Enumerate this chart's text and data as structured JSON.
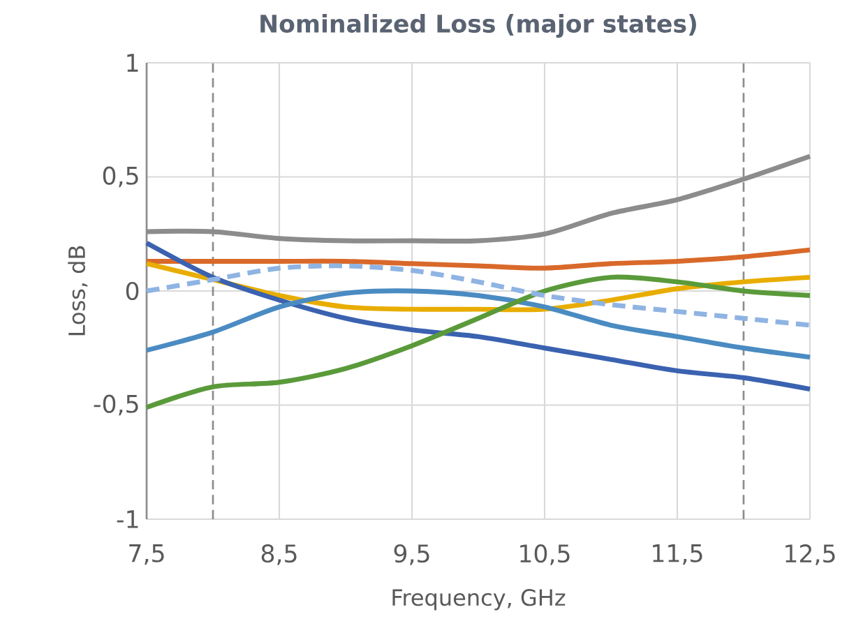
{
  "chart_data": {
    "type": "line",
    "title": "Nominalized Loss (major states)",
    "xlabel": "Frequency, GHz",
    "ylabel": "Loss, dB",
    "x": [
      7.5,
      8,
      8.5,
      9,
      9.5,
      10,
      10.5,
      11,
      11.5,
      12,
      12.5
    ],
    "series": [
      {
        "color": "#8c8c8c",
        "values": [
          0.26,
          0.26,
          0.23,
          0.22,
          0.22,
          0.22,
          0.25,
          0.34,
          0.4,
          0.49,
          0.59
        ]
      },
      {
        "color": "#d9692a",
        "values": [
          0.13,
          0.13,
          0.13,
          0.13,
          0.12,
          0.11,
          0.1,
          0.12,
          0.13,
          0.15,
          0.18
        ]
      },
      {
        "color": "#e8ad00",
        "values": [
          0.12,
          0.05,
          -0.02,
          -0.07,
          -0.08,
          -0.08,
          -0.08,
          -0.04,
          0.01,
          0.04,
          0.06
        ]
      },
      {
        "color": "#3a62b0",
        "values": [
          0.21,
          0.06,
          -0.04,
          -0.12,
          -0.17,
          -0.2,
          -0.25,
          -0.3,
          -0.35,
          -0.38,
          -0.43
        ]
      },
      {
        "color": "#4a8bc2",
        "values": [
          -0.26,
          -0.18,
          -0.07,
          -0.01,
          0.0,
          -0.02,
          -0.07,
          -0.15,
          -0.2,
          -0.25,
          -0.29
        ]
      },
      {
        "color": "#5a9a3a",
        "values": [
          -0.51,
          -0.42,
          -0.4,
          -0.34,
          -0.24,
          -0.12,
          0.0,
          0.06,
          0.04,
          0.0,
          -0.02
        ]
      },
      {
        "color": "#8fb4e3",
        "line_style": "dashed",
        "values": [
          0.0,
          0.05,
          0.1,
          0.11,
          0.09,
          0.04,
          -0.02,
          -0.06,
          -0.09,
          -0.12,
          -0.15
        ]
      }
    ],
    "xlim": [
      7.5,
      12.5
    ],
    "ylim": [
      -1,
      1
    ],
    "xticks": [
      {
        "value": 7.5,
        "label": "7,5"
      },
      {
        "value": 8.5,
        "label": "8,5"
      },
      {
        "value": 9.5,
        "label": "9,5"
      },
      {
        "value": 10.5,
        "label": "10,5"
      },
      {
        "value": 11.5,
        "label": "11,5"
      },
      {
        "value": 12.5,
        "label": "12,5"
      }
    ],
    "yticks": [
      -1,
      {
        "value": -0.5,
        "label": "-0,5"
      },
      0,
      {
        "value": 0.5,
        "label": "0,5"
      },
      1
    ],
    "ref_lines": [
      {
        "axis": "x",
        "value": 8,
        "color": "#8c8c8c",
        "line_style": "dashed"
      },
      {
        "axis": "x",
        "value": 12,
        "color": "#8c8c8c",
        "line_style": "dashed"
      }
    ],
    "grid": true,
    "marker": "none",
    "line_style": "solid"
  }
}
